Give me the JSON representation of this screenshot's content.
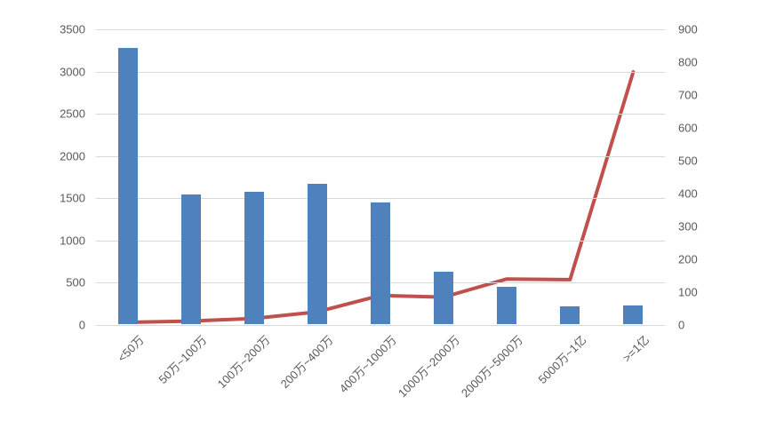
{
  "chart_data": {
    "type": "bar",
    "subtype": "combo-bar-line-dual-axis",
    "title": "",
    "xlabel": "",
    "ylabel": "",
    "grid": true,
    "legend": "none",
    "background_color": "#FFFFFF",
    "gridline_color": "#D9D9D9",
    "tick_label_color": "#595959",
    "categories": [
      "<50万",
      "50万~100万",
      "100万~200万",
      "200万~400万",
      "400万~1000万",
      "1000万~2000万",
      "2000万~5000万",
      "5000万~1亿",
      ">=1亿"
    ],
    "series": [
      {
        "type": "bar",
        "axis": "left",
        "color": "#4F81BD",
        "values": [
          3270,
          1530,
          1570,
          1665,
          1445,
          620,
          445,
          205,
          220
        ]
      },
      {
        "type": "line",
        "axis": "right",
        "color": "#C0504D",
        "values": [
          8,
          12,
          20,
          40,
          90,
          85,
          140,
          138,
          770
        ]
      }
    ],
    "left_axis": {
      "min": 0,
      "max": 3500,
      "step": 500,
      "tick_labels": [
        "3500",
        "3000",
        "2500",
        "2000",
        "1500",
        "1000",
        "500",
        "0"
      ]
    },
    "right_axis": {
      "min": 0,
      "max": 900,
      "step": 100,
      "tick_labels": [
        "900",
        "800",
        "700",
        "600",
        "500",
        "400",
        "300",
        "200",
        "100",
        "0"
      ]
    }
  }
}
